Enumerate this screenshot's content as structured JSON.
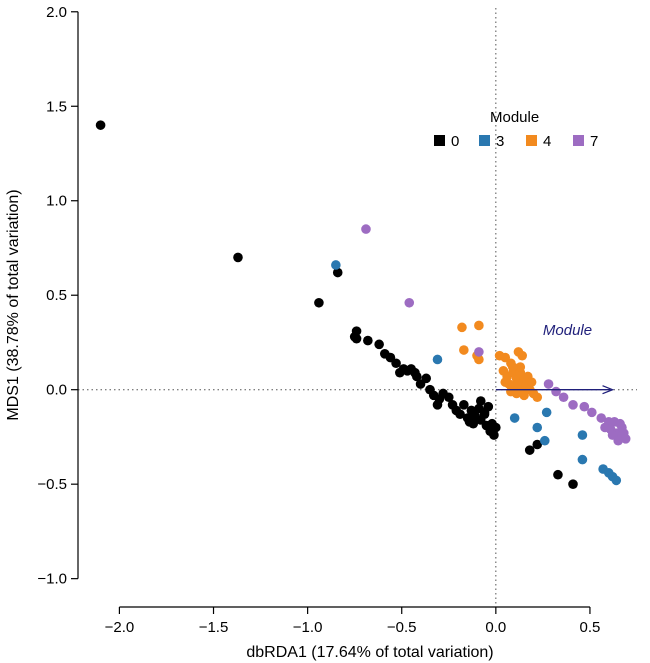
{
  "chart_data": {
    "type": "scatter",
    "title": "",
    "xlabel": "dbRDA1 (17.64% of total variation)",
    "ylabel": "MDS1 (38.78% of total variation)",
    "xlim": [
      -2.22,
      0.75
    ],
    "ylim": [
      -1.15,
      2.02
    ],
    "xticks": [
      -2.0,
      -1.5,
      -1.0,
      -0.5,
      0.0,
      0.5
    ],
    "xtick_labels": [
      "−2.0",
      "−1.5",
      "−1.0",
      "−0.5",
      "0.0",
      "0.5"
    ],
    "yticks": [
      -1.0,
      -0.5,
      0.0,
      0.5,
      1.0,
      1.5,
      2.0
    ],
    "ytick_labels": [
      "−1.0",
      "−0.5",
      "0.0",
      "0.5",
      "1.0",
      "1.5",
      "2.0"
    ],
    "legend": {
      "title": "Module",
      "position": "top-right",
      "entries": [
        {
          "label": "0",
          "color": "#000000"
        },
        {
          "label": "3",
          "color": "#2a78b0"
        },
        {
          "label": "4",
          "color": "#f28a1f"
        },
        {
          "label": "7",
          "color": "#9d6cc2"
        }
      ]
    },
    "vector": {
      "label": "Module",
      "x0": 0.0,
      "y0": 0.0,
      "x1": 0.62,
      "y1": 0.0,
      "color": "#1f1f7a"
    },
    "series": [
      {
        "name": "0",
        "color": "#000000",
        "points": [
          [
            -2.1,
            1.4
          ],
          [
            -1.37,
            0.7
          ],
          [
            -0.94,
            0.46
          ],
          [
            -0.84,
            0.62
          ],
          [
            -0.74,
            0.31
          ],
          [
            -0.75,
            0.28
          ],
          [
            -0.74,
            0.27
          ],
          [
            -0.68,
            0.26
          ],
          [
            -0.62,
            0.24
          ],
          [
            -0.59,
            0.19
          ],
          [
            -0.56,
            0.17
          ],
          [
            -0.53,
            0.14
          ],
          [
            -0.51,
            0.09
          ],
          [
            -0.49,
            0.11
          ],
          [
            -0.47,
            0.1
          ],
          [
            -0.45,
            0.11
          ],
          [
            -0.43,
            0.09
          ],
          [
            -0.42,
            0.07
          ],
          [
            -0.4,
            0.03
          ],
          [
            -0.37,
            0.06
          ],
          [
            -0.35,
            0.0
          ],
          [
            -0.33,
            -0.03
          ],
          [
            -0.3,
            -0.05
          ],
          [
            -0.31,
            -0.08
          ],
          [
            -0.28,
            -0.02
          ],
          [
            -0.25,
            -0.04
          ],
          [
            -0.23,
            -0.08
          ],
          [
            -0.21,
            -0.11
          ],
          [
            -0.19,
            -0.13
          ],
          [
            -0.17,
            -0.08
          ],
          [
            -0.15,
            -0.15
          ],
          [
            -0.13,
            -0.11
          ],
          [
            -0.11,
            -0.14
          ],
          [
            -0.09,
            -0.1
          ],
          [
            -0.08,
            -0.16
          ],
          [
            -0.06,
            -0.12
          ],
          [
            -0.05,
            -0.19
          ],
          [
            -0.03,
            -0.22
          ],
          [
            -0.02,
            -0.18
          ],
          [
            -0.01,
            -0.24
          ],
          [
            0.0,
            -0.2
          ],
          [
            -0.08,
            -0.06
          ],
          [
            -0.04,
            -0.09
          ],
          [
            -0.12,
            -0.18
          ],
          [
            0.18,
            -0.32
          ],
          [
            0.22,
            -0.29
          ],
          [
            0.33,
            -0.45
          ],
          [
            0.41,
            -0.5
          ],
          [
            -0.06,
            -0.13
          ],
          [
            -0.14,
            -0.17
          ]
        ]
      },
      {
        "name": "3",
        "color": "#2a78b0",
        "points": [
          [
            -0.85,
            0.66
          ],
          [
            -0.31,
            0.16
          ],
          [
            0.1,
            -0.15
          ],
          [
            0.22,
            -0.2
          ],
          [
            0.27,
            -0.12
          ],
          [
            0.26,
            -0.27
          ],
          [
            0.46,
            -0.24
          ],
          [
            0.46,
            -0.37
          ],
          [
            0.57,
            -0.42
          ],
          [
            0.6,
            -0.44
          ],
          [
            0.62,
            -0.46
          ],
          [
            0.64,
            -0.48
          ]
        ]
      },
      {
        "name": "4",
        "color": "#f28a1f",
        "points": [
          [
            -0.18,
            0.33
          ],
          [
            -0.09,
            0.34
          ],
          [
            -0.17,
            0.21
          ],
          [
            -0.1,
            0.18
          ],
          [
            -0.09,
            0.16
          ],
          [
            0.02,
            0.18
          ],
          [
            0.05,
            0.17
          ],
          [
            0.08,
            0.14
          ],
          [
            0.12,
            0.2
          ],
          [
            0.14,
            0.18
          ],
          [
            0.04,
            0.1
          ],
          [
            0.06,
            0.07
          ],
          [
            0.09,
            0.09
          ],
          [
            0.11,
            0.06
          ],
          [
            0.13,
            0.09
          ],
          [
            0.15,
            0.05
          ],
          [
            0.07,
            0.03
          ],
          [
            0.1,
            0.02
          ],
          [
            0.12,
            0.03
          ],
          [
            0.14,
            0.0
          ],
          [
            0.16,
            0.02
          ],
          [
            0.18,
            0.0
          ],
          [
            0.2,
            -0.02
          ],
          [
            0.08,
            -0.01
          ],
          [
            0.11,
            -0.02
          ],
          [
            0.15,
            -0.03
          ],
          [
            0.22,
            -0.04
          ],
          [
            0.13,
            0.12
          ],
          [
            0.05,
            0.04
          ],
          [
            0.17,
            0.07
          ],
          [
            0.19,
            0.04
          ],
          [
            0.09,
            0.12
          ]
        ]
      },
      {
        "name": "7",
        "color": "#9d6cc2",
        "points": [
          [
            -0.69,
            0.85
          ],
          [
            -0.46,
            0.46
          ],
          [
            -0.09,
            0.2
          ],
          [
            0.28,
            0.03
          ],
          [
            0.32,
            -0.01
          ],
          [
            0.36,
            -0.04
          ],
          [
            0.41,
            -0.08
          ],
          [
            0.47,
            -0.09
          ],
          [
            0.51,
            -0.12
          ],
          [
            0.56,
            -0.15
          ],
          [
            0.6,
            -0.17
          ],
          [
            0.63,
            -0.17
          ],
          [
            0.61,
            -0.21
          ],
          [
            0.64,
            -0.23
          ],
          [
            0.66,
            -0.25
          ],
          [
            0.67,
            -0.2
          ],
          [
            0.68,
            -0.23
          ],
          [
            0.69,
            -0.26
          ],
          [
            0.65,
            -0.27
          ],
          [
            0.62,
            -0.24
          ],
          [
            0.58,
            -0.2
          ],
          [
            0.66,
            -0.18
          ]
        ]
      }
    ]
  }
}
